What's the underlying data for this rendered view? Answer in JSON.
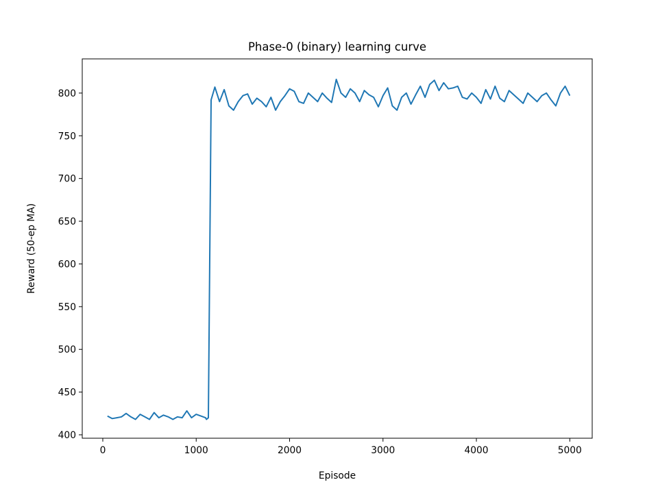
{
  "chart_data": {
    "type": "line",
    "title": "Phase-0 (binary) learning curve",
    "xlabel": "Episode",
    "ylabel": "Reward (50-ep MA)",
    "xlim": [
      -220,
      5240
    ],
    "ylim": [
      396,
      840
    ],
    "xticks": [
      0,
      1000,
      2000,
      3000,
      4000,
      5000
    ],
    "yticks": [
      400,
      450,
      500,
      550,
      600,
      650,
      700,
      750,
      800
    ],
    "grid": false,
    "legend": "none",
    "series": [
      {
        "color": "#1f77b4",
        "x": [
          50,
          100,
          150,
          200,
          250,
          300,
          350,
          400,
          450,
          500,
          550,
          600,
          650,
          700,
          750,
          800,
          850,
          900,
          950,
          1000,
          1050,
          1100,
          1110,
          1130,
          1160,
          1200,
          1250,
          1300,
          1350,
          1400,
          1450,
          1500,
          1550,
          1600,
          1650,
          1700,
          1750,
          1800,
          1850,
          1900,
          1950,
          2000,
          2050,
          2100,
          2150,
          2200,
          2250,
          2300,
          2350,
          2400,
          2450,
          2500,
          2550,
          2600,
          2650,
          2700,
          2750,
          2800,
          2850,
          2900,
          2950,
          3000,
          3050,
          3100,
          3150,
          3200,
          3250,
          3300,
          3350,
          3400,
          3450,
          3500,
          3550,
          3600,
          3650,
          3700,
          3750,
          3800,
          3850,
          3900,
          3950,
          4000,
          4050,
          4100,
          4150,
          4200,
          4250,
          4300,
          4350,
          4400,
          4450,
          4500,
          4550,
          4600,
          4650,
          4700,
          4750,
          4800,
          4850,
          4900,
          4950,
          5000
        ],
        "y": [
          422,
          419,
          420,
          421,
          425,
          421,
          418,
          424,
          421,
          418,
          426,
          420,
          423,
          421,
          418,
          421,
          420,
          428,
          420,
          424,
          422,
          420,
          418,
          420,
          792,
          807,
          790,
          804,
          785,
          780,
          790,
          797,
          799,
          787,
          794,
          790,
          784,
          795,
          780,
          790,
          797,
          805,
          802,
          790,
          788,
          800,
          795,
          790,
          800,
          794,
          789,
          816,
          800,
          795,
          805,
          800,
          790,
          803,
          798,
          795,
          784,
          797,
          806,
          785,
          780,
          795,
          800,
          787,
          798,
          808,
          795,
          810,
          815,
          803,
          812,
          805,
          806,
          808,
          795,
          793,
          800,
          795,
          788,
          804,
          793,
          808,
          794,
          790,
          803,
          798,
          793,
          788,
          800,
          795,
          790,
          797,
          800,
          792,
          785,
          800,
          808,
          797
        ]
      }
    ]
  }
}
